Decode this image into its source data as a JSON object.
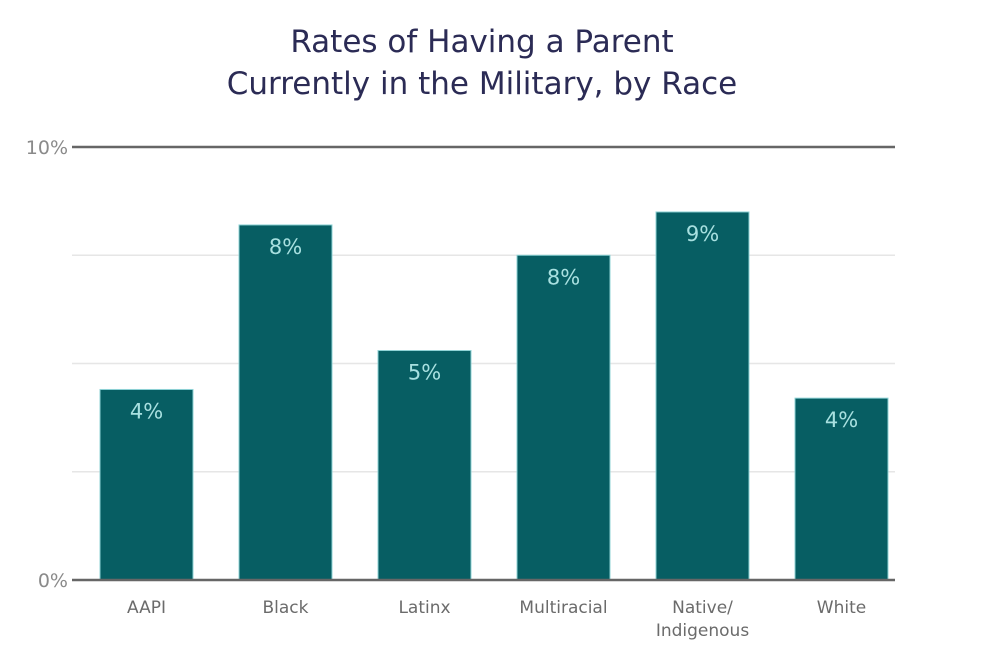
{
  "chart_data": {
    "type": "bar",
    "title": "Rates of Having a Parent Currently in the Military, by Race",
    "title_lines": [
      "Rates of Having a Parent",
      "Currently in the Military, by Race"
    ],
    "xlabel": "",
    "ylabel": "",
    "ylim": [
      0,
      10
    ],
    "yticks": [
      {
        "value": 0,
        "label": "0%"
      },
      {
        "value": 10,
        "label": "10%"
      }
    ],
    "gridlines": [
      2.5,
      5,
      7.5
    ],
    "grid": true,
    "legend": "none",
    "categories": [
      "AAPI",
      "Black",
      "Latinx",
      "Multiracial",
      "Native/ Indigenous",
      "White"
    ],
    "category_lines": [
      [
        "AAPI"
      ],
      [
        "Black"
      ],
      [
        "Latinx"
      ],
      [
        "Multiracial"
      ],
      [
        "Native/",
        "Indigenous"
      ],
      [
        "White"
      ]
    ],
    "values": [
      4.4,
      8.2,
      5.3,
      7.5,
      8.5,
      4.2
    ],
    "data_labels": [
      "4%",
      "8%",
      "5%",
      "8%",
      "9%",
      "4%"
    ],
    "colors": {
      "bar": "#075e63",
      "bar_edge": "#8fd3d6",
      "data_label": "#a8e0e0",
      "axis": "#666666",
      "grid": "#e6e6e6",
      "title": "#2b2b55",
      "tick": "#8a8a8a",
      "category": "#6b6b6b"
    }
  }
}
